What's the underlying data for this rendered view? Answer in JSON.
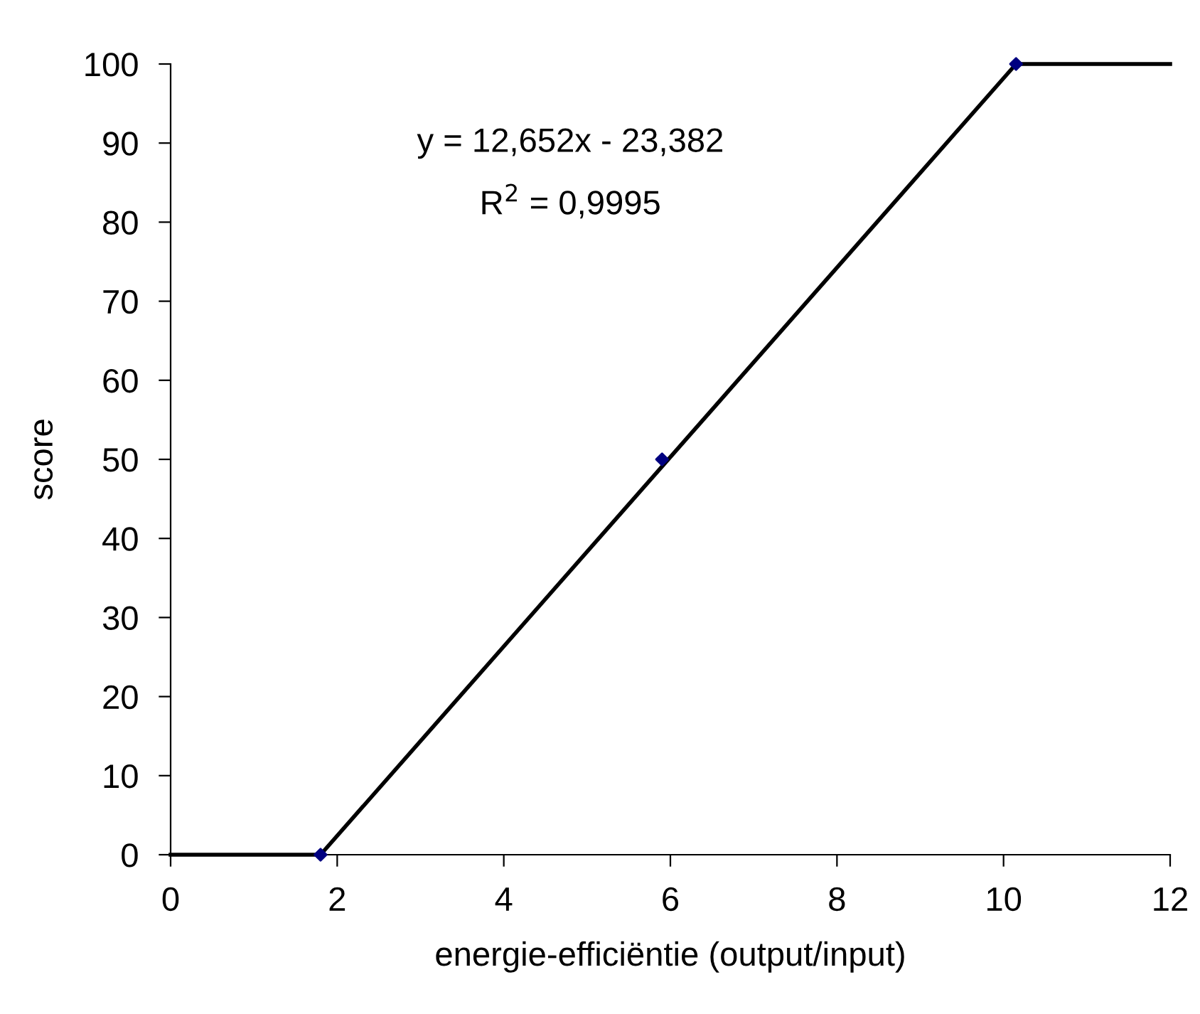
{
  "chart_data": {
    "type": "scatter",
    "xlabel": "energie-efficiëntie (output/input)",
    "ylabel": "score",
    "series": [
      {
        "color": "#000080",
        "marker": "diamond",
        "x": [
          1.8,
          5.9,
          10.15
        ],
        "values": [
          0,
          50,
          100
        ]
      },
      {
        "type": "line",
        "color": "#000000",
        "marker": "none",
        "line_style": "solid",
        "x": [
          0,
          1.8,
          10.15,
          12
        ],
        "values": [
          0,
          0,
          100,
          100
        ]
      }
    ],
    "annotations": [
      "y = 12,652x - 23,382",
      "R$^{2}$ = 0,9995"
    ],
    "xlim": [
      0,
      12
    ],
    "xticks": [
      0,
      2,
      4,
      6,
      8,
      10,
      12
    ],
    "ylim": [
      0,
      100
    ],
    "yticks": [
      0,
      10,
      20,
      30,
      40,
      50,
      60,
      70,
      80,
      90,
      100
    ],
    "grid": false,
    "legend": false
  }
}
